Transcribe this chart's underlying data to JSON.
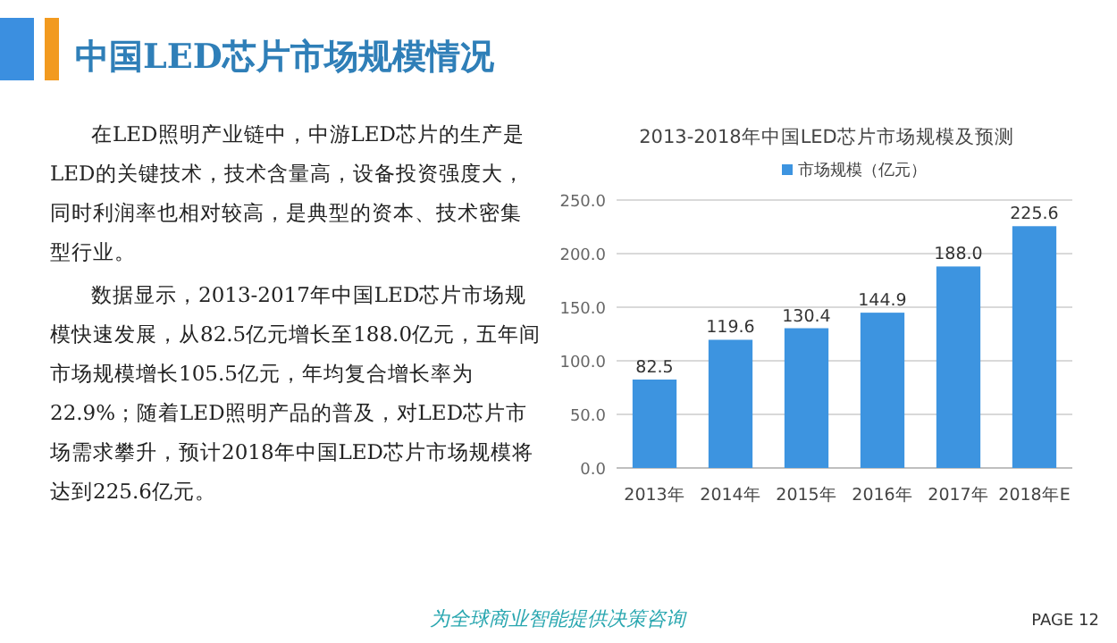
{
  "chart_data": {
    "type": "bar",
    "title": "2013-2018年中国LED芯片市场规模及预测",
    "categories": [
      "2013年",
      "2014年",
      "2015年",
      "2016年",
      "2017年",
      "2018年E"
    ],
    "series": [
      {
        "name": "市场规模（亿元）",
        "color": "#3d94e0",
        "values": [
          82.5,
          119.6,
          130.4,
          144.9,
          188.0,
          225.6
        ],
        "value_labels": [
          "82.5",
          "119.6",
          "130.4",
          "144.9",
          "188.0",
          "225.6"
        ]
      }
    ],
    "ylim": [
      0,
      250
    ],
    "yticks": [
      {
        "value": 0,
        "label": "0.0"
      },
      {
        "value": 50,
        "label": "50.0"
      },
      {
        "value": 100,
        "label": "100.0"
      },
      {
        "value": 150,
        "label": "150.0"
      },
      {
        "value": 200,
        "label": "200.0"
      },
      {
        "value": 250,
        "label": "250.0"
      }
    ],
    "grid": "y",
    "legend": "top",
    "annotations": [
      "中国LED芯片市场规模情况",
      "在LED照明产业链中，中游LED芯片的生产是LED的关键技术，技术含量高，设备投资强度大，同时利润率也相对较高，是典型的资本、技术密集型行业。",
      "数据显示，2013-2017年中国LED芯片市场规模快速发展，从82.5亿元增长至188.0亿元，五年间市场规模增长105.5亿元，年均复合增长率为22.9%；随着LED照明产品的普及，对LED芯片市场需求攀升，预计2018年中国LED芯片市场规模将达到225.6亿元。",
      "为全球商业智能提供决策咨询",
      "PAGE 12"
    ]
  }
}
